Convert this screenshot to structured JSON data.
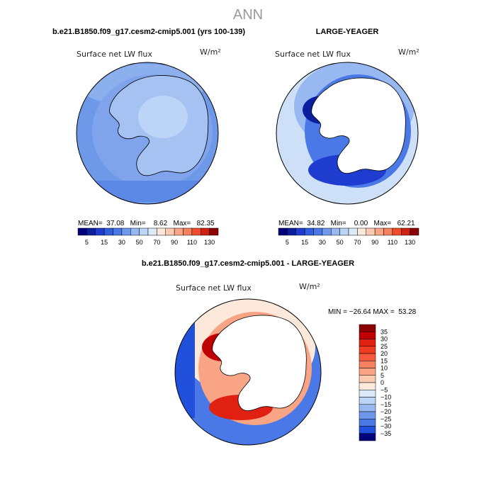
{
  "title": "ANN",
  "panels": [
    {
      "header": "b.e21.B1850.f09_g17.cesm2-cmip5.001 (yrs 100-139)",
      "variable": "Surface net LW flux",
      "units": "W/m²",
      "stats": "MEAN=  37.08   Min=    8.62   Max=   82.35",
      "colorbar": {
        "labels": [
          "5",
          "15",
          "30",
          "50",
          "70",
          "90",
          "110",
          "130"
        ],
        "colors": [
          "#00007a",
          "#0a1e9e",
          "#1e3cd0",
          "#3060e0",
          "#4a78e6",
          "#6f98ec",
          "#97b8f1",
          "#bcd4f6",
          "#ddebf9",
          "#fde9dc",
          "#fbcab0",
          "#f9a585",
          "#f7805f",
          "#f04c2c",
          "#d02010",
          "#8b0000"
        ]
      }
    },
    {
      "header": "LARGE-YEAGER",
      "variable": "Surface net LW flux",
      "units": "W/m²",
      "stats": "MEAN=  34.82   Min=    0.00   Max=   62.21",
      "colorbar": {
        "labels": [
          "5",
          "15",
          "30",
          "50",
          "70",
          "90",
          "110",
          "130"
        ],
        "colors": [
          "#00007a",
          "#0a1e9e",
          "#1e3cd0",
          "#3060e0",
          "#4a78e6",
          "#6f98ec",
          "#97b8f1",
          "#bcd4f6",
          "#ddebf9",
          "#fde9dc",
          "#fbcab0",
          "#f9a585",
          "#f7805f",
          "#f04c2c",
          "#d02010",
          "#8b0000"
        ]
      }
    },
    {
      "header": "b.e21.B1850.f09_g17.cesm2-cmip5.001 - LARGE-YEAGER",
      "variable": "Surface net LW flux",
      "units": "W/m²",
      "stats": "MIN = −26.64 MAX =  53.28",
      "colorbar": {
        "labels": [
          "35",
          "30",
          "25",
          "20",
          "15",
          "10",
          "5",
          "0",
          "−5",
          "−10",
          "−15",
          "−20",
          "−25",
          "−30",
          "−35"
        ],
        "colors": [
          "#8b0000",
          "#c00000",
          "#e02010",
          "#f03c20",
          "#f55a3c",
          "#f7805f",
          "#f9a585",
          "#fbcab0",
          "#fde9dc",
          "#ddebf9",
          "#bcd4f6",
          "#97b8f1",
          "#6f98ec",
          "#4a78e6",
          "#2050dc",
          "#00007a"
        ]
      }
    }
  ]
}
